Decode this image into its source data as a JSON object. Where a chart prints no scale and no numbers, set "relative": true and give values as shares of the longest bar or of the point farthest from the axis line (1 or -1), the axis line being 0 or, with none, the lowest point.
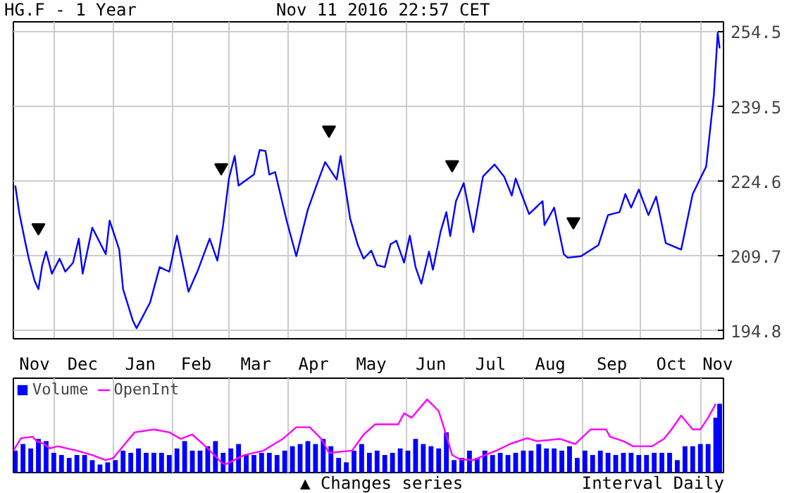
{
  "chart_data": [
    {
      "type": "line",
      "title": "HG.F - 1 Year",
      "subtitle": "Nov 11 2016 22:57 CET",
      "xlim": [
        "2015-11-10",
        "2016-11-13"
      ],
      "ylim": [
        193.2,
        256.5
      ],
      "yticks": [
        194.8,
        209.7,
        224.6,
        239.5,
        254.5
      ],
      "xticks": [
        {
          "value": "2015-11-21",
          "label": "Nov"
        },
        {
          "value": "2015-12-01",
          "label": null
        },
        {
          "value": "2015-12-16",
          "label": "Dec"
        },
        {
          "value": "2016-01-01",
          "label": null
        },
        {
          "value": "2016-01-15",
          "label": "Jan"
        },
        {
          "value": "2016-02-01",
          "label": null
        },
        {
          "value": "2016-02-13",
          "label": "Feb"
        },
        {
          "value": "2016-03-01",
          "label": null
        },
        {
          "value": "2016-03-15",
          "label": "Mar"
        },
        {
          "value": "2016-04-01",
          "label": null
        },
        {
          "value": "2016-04-14",
          "label": "Apr"
        },
        {
          "value": "2016-05-01",
          "label": null
        },
        {
          "value": "2016-05-14",
          "label": "May"
        },
        {
          "value": "2016-06-01",
          "label": null
        },
        {
          "value": "2016-06-14",
          "label": "Jun"
        },
        {
          "value": "2016-07-01",
          "label": null
        },
        {
          "value": "2016-07-15",
          "label": "Jul"
        },
        {
          "value": "2016-08-01",
          "label": null
        },
        {
          "value": "2016-08-15",
          "label": "Aug"
        },
        {
          "value": "2016-09-01",
          "label": null
        },
        {
          "value": "2016-09-16",
          "label": "Sep"
        },
        {
          "value": "2016-10-01",
          "label": null
        },
        {
          "value": "2016-10-17",
          "label": "Oct"
        },
        {
          "value": "2016-11-01",
          "label": null
        },
        {
          "value": "2016-11-10",
          "label": "Nov"
        }
      ],
      "grid": true,
      "series": [
        {
          "type": "line",
          "color": "#0000ff",
          "x": [
            "2015-11-11",
            "2015-11-13",
            "2015-11-16",
            "2015-11-18",
            "2015-11-21",
            "2015-11-23",
            "2015-11-25",
            "2015-11-27",
            "2015-11-30",
            "2015-12-04",
            "2015-12-07",
            "2015-12-11",
            "2015-12-14",
            "2015-12-16",
            "2015-12-21",
            "2015-12-28",
            "2015-12-30",
            "2016-01-04",
            "2016-01-06",
            "2016-01-11",
            "2016-01-13",
            "2016-01-20",
            "2016-01-25",
            "2016-01-30",
            "2016-02-03",
            "2016-02-09",
            "2016-02-14",
            "2016-02-20",
            "2016-02-24",
            "2016-02-27",
            "2016-03-01",
            "2016-03-04",
            "2016-03-06",
            "2016-03-14",
            "2016-03-17",
            "2016-03-20",
            "2016-03-22",
            "2016-03-25",
            "2016-03-31",
            "2016-04-05",
            "2016-04-11",
            "2016-04-17",
            "2016-04-20",
            "2016-04-26",
            "2016-04-28",
            "2016-05-03",
            "2016-05-07",
            "2016-05-10",
            "2016-05-14",
            "2016-05-17",
            "2016-05-21",
            "2016-05-24",
            "2016-05-25",
            "2016-05-27",
            "2016-05-31",
            "2016-06-03",
            "2016-06-06",
            "2016-06-09",
            "2016-06-13",
            "2016-06-15",
            "2016-06-19",
            "2016-06-22",
            "2016-06-24",
            "2016-06-27",
            "2016-07-01",
            "2016-07-06",
            "2016-07-11",
            "2016-07-17",
            "2016-07-22",
            "2016-07-26",
            "2016-07-28",
            "2016-08-04",
            "2016-08-11",
            "2016-08-12",
            "2016-08-17",
            "2016-08-22",
            "2016-08-24",
            "2016-08-31",
            "2016-09-09",
            "2016-09-14",
            "2016-09-20",
            "2016-09-23",
            "2016-09-26",
            "2016-09-30",
            "2016-10-05",
            "2016-10-09",
            "2016-10-14",
            "2016-10-22",
            "2016-10-28",
            "2016-11-04",
            "2016-11-08",
            "2016-11-10",
            "2016-11-11"
          ],
          "values": [
            223.8,
            218.5,
            212.8,
            209.2,
            204.8,
            203.1,
            207.9,
            210.6,
            206.2,
            209.2,
            206.6,
            208.4,
            213.2,
            206.2,
            215.4,
            210.1,
            216.8,
            211.0,
            203.1,
            196.9,
            195.3,
            200.4,
            207.5,
            206.6,
            213.8,
            202.6,
            207.0,
            213.2,
            208.8,
            215.9,
            225.2,
            229.7,
            223.8,
            226.0,
            230.9,
            230.7,
            226.0,
            226.5,
            216.8,
            209.7,
            219.0,
            225.4,
            228.5,
            225.0,
            229.7,
            217.2,
            211.9,
            209.2,
            210.8,
            207.9,
            207.5,
            212.1,
            212.3,
            212.8,
            208.4,
            213.8,
            207.5,
            204.2,
            210.6,
            207.0,
            214.6,
            218.5,
            213.7,
            220.7,
            224.3,
            214.5,
            225.6,
            228.0,
            225.6,
            221.8,
            225.2,
            218.1,
            220.7,
            215.9,
            219.4,
            210.1,
            209.4,
            209.7,
            211.9,
            217.9,
            218.5,
            222.1,
            219.4,
            223.0,
            217.9,
            221.6,
            212.3,
            211.0,
            222.1,
            227.6,
            241.9,
            254.3,
            251.2
          ]
        },
        {
          "type": "scatter",
          "marker": "triangle",
          "color": "#000000",
          "x": [
            "2015-11-23",
            "2016-02-26",
            "2016-04-22",
            "2016-06-25",
            "2016-08-27"
          ],
          "values": [
            215.4,
            227.4,
            234.9,
            228.0,
            216.6
          ]
        }
      ]
    },
    {
      "type": "bar",
      "relative": true,
      "xlim": [
        "2015-11-10",
        "2016-11-13"
      ],
      "tick_labels": false,
      "grid": "x",
      "legend": "top left",
      "xticks": [
        {
          "value": "2015-12-01",
          "label": null
        },
        {
          "value": "2016-01-01",
          "label": null
        },
        {
          "value": "2016-02-01",
          "label": null
        },
        {
          "value": "2016-03-01",
          "label": null
        },
        {
          "value": "2016-04-01",
          "label": null
        },
        {
          "value": "2016-05-01",
          "label": null
        },
        {
          "value": "2016-06-01",
          "label": null
        },
        {
          "value": "2016-07-01",
          "label": null
        },
        {
          "value": "2016-08-01",
          "label": null
        },
        {
          "value": "2016-09-01",
          "label": null
        },
        {
          "value": "2016-10-01",
          "label": null
        },
        {
          "value": "2016-11-01",
          "label": null
        }
      ],
      "annotations": [
        "▲ Changes series",
        "Interval Daily"
      ],
      "series": [
        {
          "name": "Volume",
          "type": "bar",
          "color": "#0000ff",
          "x": [
            "2015-11-11",
            "2015-11-15",
            "2015-11-19",
            "2015-11-23",
            "2015-11-27",
            "2015-12-01",
            "2015-12-05",
            "2015-12-09",
            "2015-12-13",
            "2015-12-17",
            "2015-12-21",
            "2015-12-25",
            "2015-12-29",
            "2016-01-02",
            "2016-01-06",
            "2016-01-10",
            "2016-01-14",
            "2016-01-18",
            "2016-01-22",
            "2016-01-26",
            "2016-01-30",
            "2016-02-03",
            "2016-02-07",
            "2016-02-11",
            "2016-02-15",
            "2016-02-19",
            "2016-02-23",
            "2016-02-27",
            "2016-03-02",
            "2016-03-06",
            "2016-03-10",
            "2016-03-14",
            "2016-03-18",
            "2016-03-22",
            "2016-03-26",
            "2016-03-30",
            "2016-04-03",
            "2016-04-07",
            "2016-04-11",
            "2016-04-15",
            "2016-04-19",
            "2016-04-23",
            "2016-04-27",
            "2016-05-01",
            "2016-05-05",
            "2016-05-09",
            "2016-05-13",
            "2016-05-17",
            "2016-05-21",
            "2016-05-25",
            "2016-05-29",
            "2016-06-02",
            "2016-06-06",
            "2016-06-10",
            "2016-06-14",
            "2016-06-18",
            "2016-06-22",
            "2016-06-26",
            "2016-06-30",
            "2016-07-04",
            "2016-07-08",
            "2016-07-12",
            "2016-07-16",
            "2016-07-20",
            "2016-07-24",
            "2016-07-28",
            "2016-08-01",
            "2016-08-05",
            "2016-08-09",
            "2016-08-13",
            "2016-08-17",
            "2016-08-21",
            "2016-08-25",
            "2016-08-29",
            "2016-09-02",
            "2016-09-06",
            "2016-09-10",
            "2016-09-14",
            "2016-09-18",
            "2016-09-22",
            "2016-09-26",
            "2016-09-30",
            "2016-10-04",
            "2016-10-08",
            "2016-10-12",
            "2016-10-16",
            "2016-10-20",
            "2016-10-24",
            "2016-10-28",
            "2016-11-01",
            "2016-11-05",
            "2016-11-09",
            "2016-11-11"
          ],
          "values": [
            0.3,
            0.39,
            0.33,
            0.46,
            0.43,
            0.27,
            0.24,
            0.2,
            0.24,
            0.24,
            0.17,
            0.11,
            0.14,
            0.17,
            0.3,
            0.27,
            0.33,
            0.27,
            0.27,
            0.27,
            0.24,
            0.33,
            0.43,
            0.3,
            0.3,
            0.36,
            0.43,
            0.27,
            0.33,
            0.39,
            0.24,
            0.24,
            0.27,
            0.27,
            0.24,
            0.3,
            0.36,
            0.39,
            0.43,
            0.39,
            0.46,
            0.36,
            0.2,
            0.14,
            0.3,
            0.39,
            0.27,
            0.3,
            0.24,
            0.27,
            0.33,
            0.3,
            0.46,
            0.39,
            0.36,
            0.33,
            0.55,
            0.17,
            0.2,
            0.3,
            0.2,
            0.3,
            0.24,
            0.27,
            0.24,
            0.27,
            0.3,
            0.3,
            0.39,
            0.33,
            0.33,
            0.3,
            0.36,
            0.2,
            0.3,
            0.24,
            0.3,
            0.27,
            0.24,
            0.27,
            0.27,
            0.24,
            0.24,
            0.27,
            0.27,
            0.27,
            0.17,
            0.36,
            0.36,
            0.39,
            0.39,
            0.75,
            0.94
          ]
        },
        {
          "name": "OpenInt",
          "type": "line",
          "color": "#ff00ff",
          "x": [
            "2015-11-10",
            "2015-11-14",
            "2015-11-20",
            "2015-11-22",
            "2015-11-26",
            "2015-11-29",
            "2015-12-03",
            "2015-12-13",
            "2015-12-21",
            "2015-12-28",
            "2016-01-01",
            "2016-01-06",
            "2016-01-12",
            "2016-01-22",
            "2016-01-30",
            "2016-02-05",
            "2016-02-11",
            "2016-02-19",
            "2016-02-26",
            "2016-02-28",
            "2016-03-09",
            "2016-03-19",
            "2016-03-29",
            "2016-04-05",
            "2016-04-12",
            "2016-04-18",
            "2016-04-22",
            "2016-05-04",
            "2016-05-10",
            "2016-05-16",
            "2016-05-26",
            "2016-05-28",
            "2016-05-31",
            "2016-06-04",
            "2016-06-12",
            "2016-06-18",
            "2016-06-21",
            "2016-06-25",
            "2016-06-29",
            "2016-07-06",
            "2016-07-12",
            "2016-07-18",
            "2016-07-25",
            "2016-08-03",
            "2016-08-08",
            "2016-08-20",
            "2016-08-28",
            "2016-09-01",
            "2016-09-05",
            "2016-09-13",
            "2016-09-15",
            "2016-09-22",
            "2016-09-27",
            "2016-10-07",
            "2016-10-13",
            "2016-10-17",
            "2016-10-22",
            "2016-10-28",
            "2016-11-01",
            "2016-11-05",
            "2016-11-09"
          ],
          "values": [
            0.3,
            0.47,
            0.49,
            0.43,
            0.39,
            0.33,
            0.36,
            0.3,
            0.24,
            0.17,
            0.2,
            0.36,
            0.55,
            0.59,
            0.55,
            0.46,
            0.52,
            0.33,
            0.14,
            0.11,
            0.24,
            0.3,
            0.46,
            0.62,
            0.62,
            0.46,
            0.27,
            0.3,
            0.52,
            0.66,
            0.66,
            0.66,
            0.81,
            0.75,
            1.0,
            0.84,
            0.59,
            0.24,
            0.18,
            0.17,
            0.24,
            0.3,
            0.39,
            0.47,
            0.43,
            0.46,
            0.39,
            0.49,
            0.59,
            0.59,
            0.49,
            0.43,
            0.36,
            0.36,
            0.46,
            0.59,
            0.78,
            0.59,
            0.59,
            0.75,
            0.94
          ]
        }
      ]
    }
  ]
}
